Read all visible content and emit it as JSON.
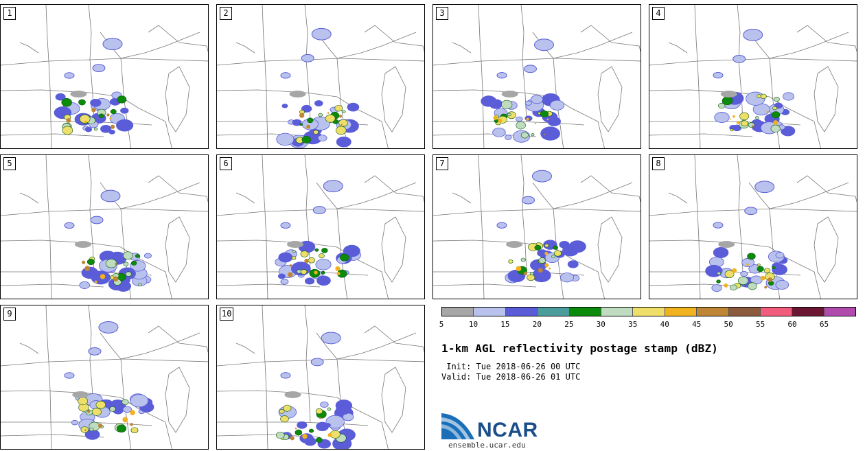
{
  "panels": [
    {
      "number": "1"
    },
    {
      "number": "2"
    },
    {
      "number": "3"
    },
    {
      "number": "4"
    },
    {
      "number": "5"
    },
    {
      "number": "6"
    },
    {
      "number": "7"
    },
    {
      "number": "8"
    },
    {
      "number": "9"
    },
    {
      "number": "10"
    }
  ],
  "colorbar": {
    "colors": [
      "#a6a6a6",
      "#b8c2ec",
      "#5a5cd8",
      "#4d9c9c",
      "#0b8a0b",
      "#c0dcc0",
      "#efdf6a",
      "#f0b21e",
      "#bd8534",
      "#8c5a3c",
      "#f15b7c",
      "#6b1733",
      "#b04aad"
    ],
    "ticks": [
      "5",
      "10",
      "15",
      "20",
      "25",
      "30",
      "35",
      "40",
      "45",
      "50",
      "55",
      "60",
      "65"
    ]
  },
  "title": "1-km AGL reflectivity postage stamp (dBZ)",
  "init_text": " Init: Tue 2018-06-26 00 UTC",
  "valid_text": "Valid: Tue 2018-06-26 01 UTC",
  "logo_text": "NCAR",
  "url": "ensemble.ucar.edu"
}
